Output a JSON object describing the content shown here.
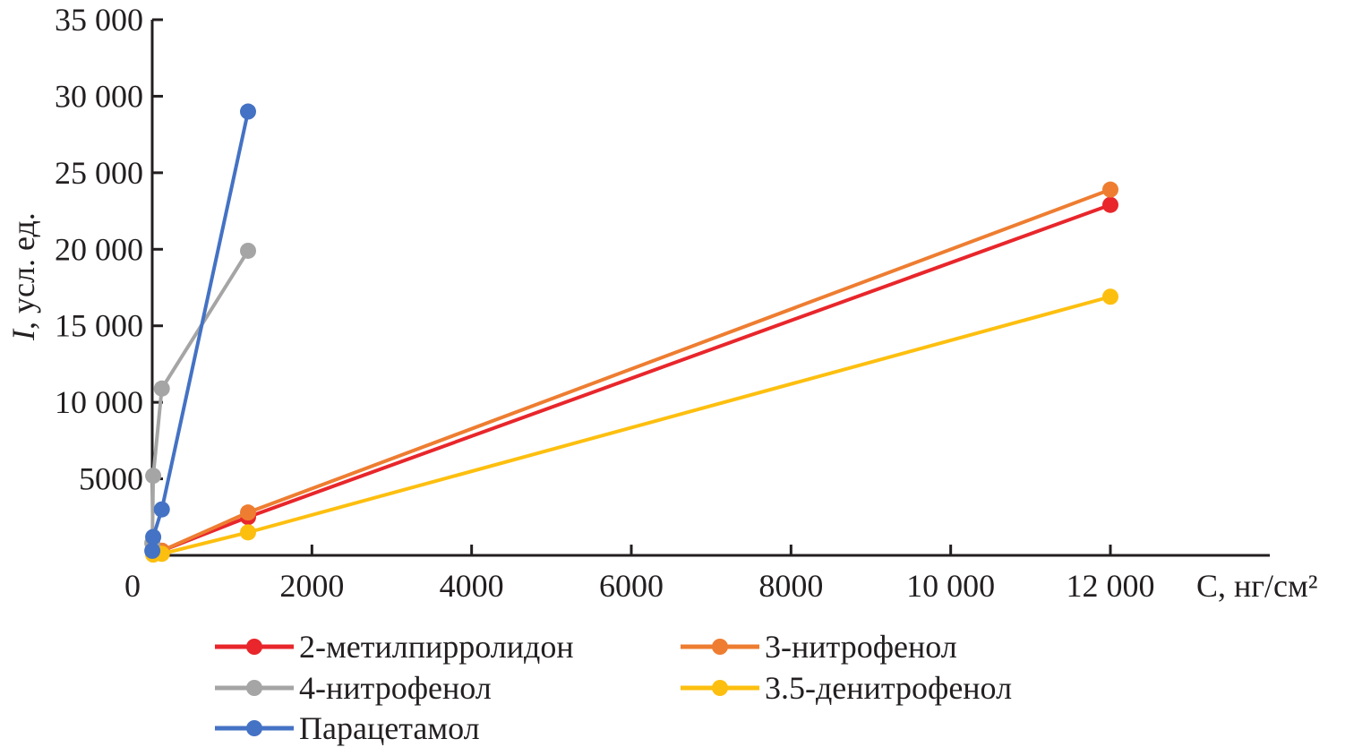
{
  "chart_data": {
    "type": "line",
    "title": "",
    "xlabel": "C, нг/см²",
    "xlabel_var": "C",
    "xlabel_unit": ", нг/см",
    "xlabel_sup": "2",
    "ylabel": "I, усл. ед.",
    "ylabel_var": "I",
    "ylabel_unit": ", усл. ед.",
    "xlim": [
      0,
      14000
    ],
    "ylim": [
      0,
      35000
    ],
    "xticks": [
      0,
      2000,
      4000,
      6000,
      8000,
      10000,
      12000
    ],
    "xtick_labels": [
      "0",
      "2000",
      "4000",
      "6000",
      "8000",
      "10 000",
      "12 000"
    ],
    "yticks": [
      5000,
      10000,
      15000,
      20000,
      25000,
      30000,
      35000
    ],
    "ytick_labels": [
      "5000",
      "10 000",
      "15 000",
      "20 000",
      "25 000",
      "30 000",
      "35 000"
    ],
    "grid": false,
    "legend_position": "bottom",
    "series": [
      {
        "name": "2-метилпирролидон",
        "color": "#e8262b",
        "x": [
          12,
          120,
          1200,
          12000
        ],
        "y": [
          100,
          300,
          2500,
          22900
        ]
      },
      {
        "name": "3-нитрофенол",
        "color": "#ee7d31",
        "x": [
          12,
          120,
          1200,
          12000
        ],
        "y": [
          150,
          300,
          2800,
          23900
        ]
      },
      {
        "name": "4-нитрофенол",
        "color": "#a5a5a5",
        "x": [
          1.2,
          12,
          120,
          1200
        ],
        "y": [
          800,
          5200,
          10900,
          19900
        ]
      },
      {
        "name": "3.5-денитрофенол",
        "color": "#fdbf0f",
        "x": [
          12,
          120,
          1200,
          12000
        ],
        "y": [
          50,
          100,
          1500,
          16900
        ]
      },
      {
        "name": "Парацетамол",
        "color": "#4472c4",
        "x": [
          1.2,
          12,
          120,
          1200
        ],
        "y": [
          300,
          1200,
          3000,
          29000
        ]
      }
    ]
  }
}
